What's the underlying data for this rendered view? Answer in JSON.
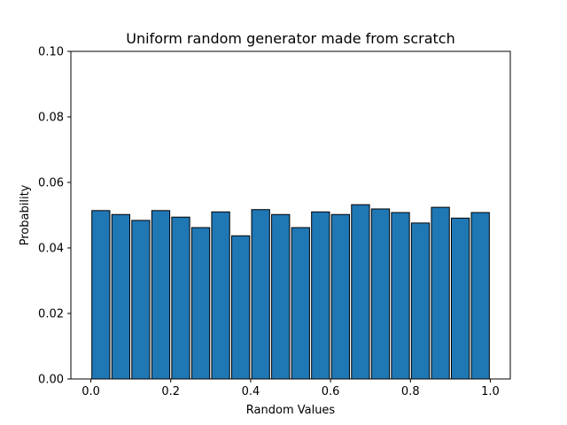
{
  "chart_data": {
    "type": "bar",
    "title": "Uniform random generator made from scratch",
    "xlabel": "Random Values",
    "ylabel": "Probability",
    "xlim": [
      -0.05,
      1.05
    ],
    "ylim": [
      0,
      0.1
    ],
    "x_ticks": [
      {
        "value": 0.0,
        "label": "0.0"
      },
      {
        "value": 0.2,
        "label": "0.2"
      },
      {
        "value": 0.4,
        "label": "0.4"
      },
      {
        "value": 0.6,
        "label": "0.6"
      },
      {
        "value": 0.8,
        "label": "0.8"
      },
      {
        "value": 1.0,
        "label": "1.0"
      }
    ],
    "y_ticks": [
      {
        "value": 0.0,
        "label": "0.00"
      },
      {
        "value": 0.02,
        "label": "0.02"
      },
      {
        "value": 0.04,
        "label": "0.04"
      },
      {
        "value": 0.06,
        "label": "0.06"
      },
      {
        "value": 0.08,
        "label": "0.08"
      },
      {
        "value": 0.1,
        "label": "0.10"
      }
    ],
    "bin_width": 0.05,
    "bar_fill": 0.9,
    "bins": [
      0.0,
      0.05,
      0.1,
      0.15,
      0.2,
      0.25,
      0.3,
      0.35,
      0.4,
      0.45,
      0.5,
      0.55,
      0.6,
      0.65,
      0.7,
      0.75,
      0.8,
      0.85,
      0.9,
      0.95
    ],
    "values": [
      0.0514,
      0.0502,
      0.0484,
      0.0514,
      0.0494,
      0.0462,
      0.051,
      0.0437,
      0.0517,
      0.0502,
      0.0462,
      0.051,
      0.0502,
      0.0532,
      0.0519,
      0.0508,
      0.0476,
      0.0524,
      0.0491,
      0.0508
    ],
    "bar_color": "#1f77b4",
    "edge_color": "#000000",
    "grid": false,
    "legend": "none"
  }
}
